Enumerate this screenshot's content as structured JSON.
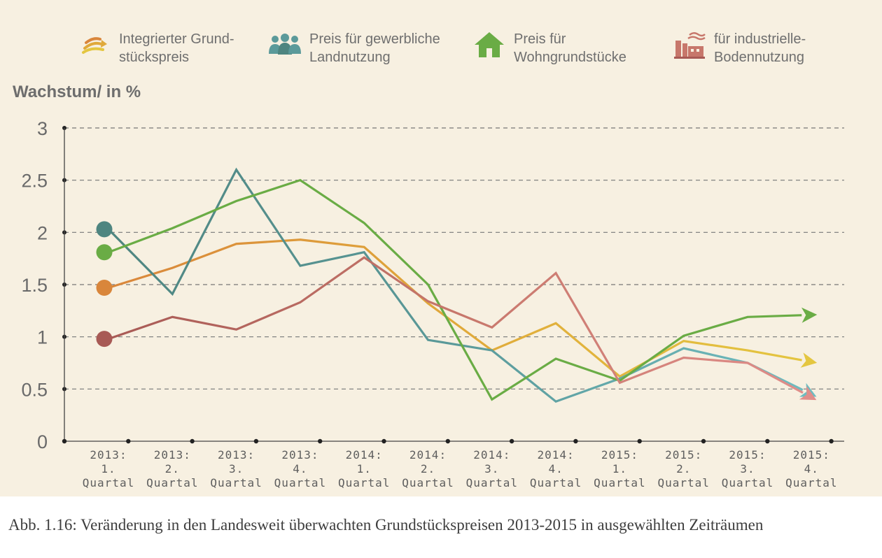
{
  "legend": [
    {
      "label": "Integrierter Grund-\nstückspreis",
      "icon": "trend-arrows-icon",
      "color": "#e0a93a"
    },
    {
      "label": "Preis für gewerbliche\nLandnutzung",
      "icon": "people-group-icon",
      "color": "#5b9a9a"
    },
    {
      "label": "Preis für\nWohngrundstücke",
      "icon": "house-icon",
      "color": "#6aac45"
    },
    {
      "label": "für industrielle-\nBodennutzung",
      "icon": "factory-icon",
      "color": "#c7776b"
    }
  ],
  "caption": "Abb. 1.16: Veränderung in den Landesweit überwachten Grundstückspreisen 2013-2015 in ausgewählten Zeiträumen",
  "chart_data": {
    "type": "line",
    "ylabel": "Wachstum/ in %",
    "xlabel": "",
    "ylim": [
      0,
      3
    ],
    "yticks": [
      "0",
      "0.5",
      "1",
      "1.5",
      "2",
      "2.5",
      "3"
    ],
    "grid": true,
    "legend_position": "top",
    "categories": [
      "2013:\n1.\nQuartal",
      "2013:\n2.\nQuartal",
      "2013:\n3.\nQuartal",
      "2013:\n4.\nQuartal",
      "2014:\n1.\nQuartal",
      "2014:\n2.\nQuartal",
      "2014:\n3.\nQuartal",
      "2014:\n4.\nQuartal",
      "2015:\n1.\nQuartal",
      "2015:\n2.\nQuartal",
      "2015:\n3.\nQuartal",
      "2015:\n4.\nQuartal"
    ],
    "series": [
      {
        "name": "Integrierter Grundstückspreis",
        "colors": [
          "#d9863b",
          "#e0a93a",
          "#e4c640"
        ],
        "values": [
          1.47,
          1.66,
          1.89,
          1.93,
          1.86,
          1.32,
          0.87,
          1.13,
          0.62,
          0.96,
          0.87,
          0.76
        ]
      },
      {
        "name": "Preis für gewerbliche Landnutzung",
        "colors": [
          "#4e8580",
          "#5b9a9a",
          "#6fbcc0"
        ],
        "values": [
          2.03,
          1.41,
          2.6,
          1.68,
          1.81,
          0.97,
          0.87,
          0.38,
          0.6,
          0.89,
          0.75,
          0.45
        ]
      },
      {
        "name": "Preis für Wohngrundstücke",
        "colors": [
          "#6aac45",
          "#6aac45",
          "#6aac45"
        ],
        "values": [
          1.81,
          2.04,
          2.3,
          2.5,
          2.09,
          1.5,
          0.4,
          0.79,
          0.58,
          1.01,
          1.19,
          1.21
        ]
      },
      {
        "name": "für industrielle Bodennutzung",
        "colors": [
          "#a85a55",
          "#c7776b",
          "#e08e8a"
        ],
        "values": [
          0.98,
          1.19,
          1.07,
          1.33,
          1.76,
          1.34,
          1.09,
          1.61,
          0.56,
          0.8,
          0.75,
          0.42
        ]
      }
    ]
  }
}
